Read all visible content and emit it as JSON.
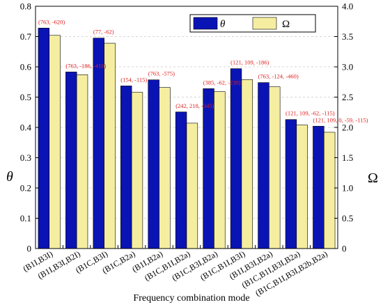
{
  "chart_data": {
    "type": "bar",
    "xlabel": "Frequency combination mode",
    "ylabel_left": "θ",
    "ylabel_right": "Ω",
    "ylim_left": [
      0,
      0.8
    ],
    "ylim_right": [
      0,
      4.0
    ],
    "yticks_left": [
      "0",
      "0.1",
      "0.2",
      "0.3",
      "0.4",
      "0.5",
      "0.6",
      "0.7",
      "0.8"
    ],
    "yticks_right": [
      "0",
      "0.5",
      "1.0",
      "1.5",
      "2.0",
      "2.5",
      "3.0",
      "3.5",
      "4.0"
    ],
    "legend_position": "top-right",
    "categories": [
      "(B1I,B3I)",
      "(B1I,B3I,B2I)",
      "(B1C,B3I)",
      "(B1C,B2a)",
      "(B1I,B2a)",
      "(B1C,B1I,B2a)",
      "(B1C,B3I,B2a)",
      "(B1C,B1I,B3I)",
      "(B1I,B3I,B2a)",
      "(B1C,B1I,B3I,B2a)",
      "(B1C,B1I,B3I,B2b,B2a)"
    ],
    "series": [
      {
        "name": "θ",
        "axis": "left",
        "color": "#0a14b4",
        "values": [
          0.728,
          0.583,
          0.695,
          0.537,
          0.557,
          0.451,
          0.528,
          0.594,
          0.548,
          0.426,
          0.404
        ]
      },
      {
        "name": "Ω",
        "axis": "right",
        "color": "#f5eea0",
        "values": [
          3.52,
          2.87,
          3.39,
          2.58,
          2.66,
          2.07,
          2.59,
          2.79,
          2.67,
          2.04,
          1.92
        ]
      }
    ],
    "annotations": [
      "(763, -620)",
      "(763, -186, -410)",
      "(77, -62)",
      "(154, -115)",
      "(763, -575)",
      "(242, 218, -345)",
      "(385, -62, -230)",
      "(121, 109, -186)",
      "(763, -124, -460)",
      "(121, 109, -62, -115)",
      "(121, 109, 0, -59, -115)"
    ]
  }
}
